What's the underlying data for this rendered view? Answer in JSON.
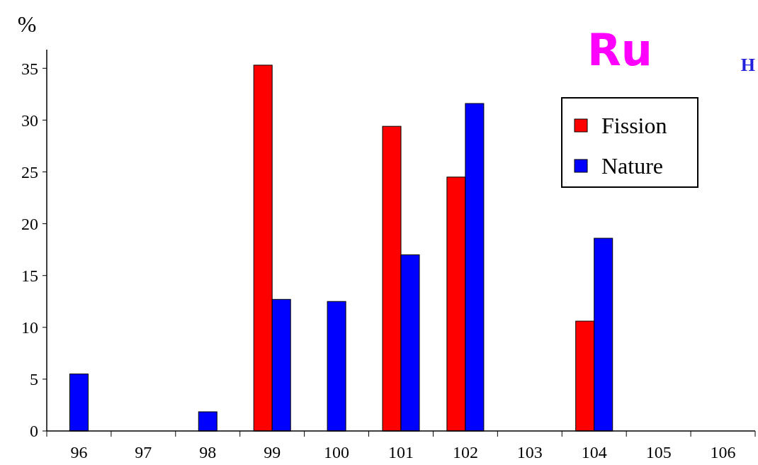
{
  "chart_data": {
    "type": "bar",
    "title": "Ru",
    "ylabel": "%",
    "annotations": [
      "H"
    ],
    "categories": [
      "96",
      "97",
      "98",
      "99",
      "100",
      "101",
      "102",
      "103",
      "104",
      "105",
      "106"
    ],
    "series": [
      {
        "name": "Fission",
        "color": "#ff0000",
        "values": [
          null,
          null,
          null,
          35.3,
          null,
          29.4,
          24.5,
          null,
          10.6,
          null,
          null
        ]
      },
      {
        "name": "Nature",
        "color": "#0000ff",
        "values": [
          5.5,
          null,
          1.85,
          12.7,
          12.5,
          17.0,
          31.6,
          null,
          18.6,
          null,
          null
        ]
      }
    ],
    "ylim": [
      0,
      36.8
    ],
    "yticks": [
      0,
      5,
      10,
      15,
      20,
      25,
      30,
      35
    ],
    "grid": false,
    "legend": "top right"
  }
}
